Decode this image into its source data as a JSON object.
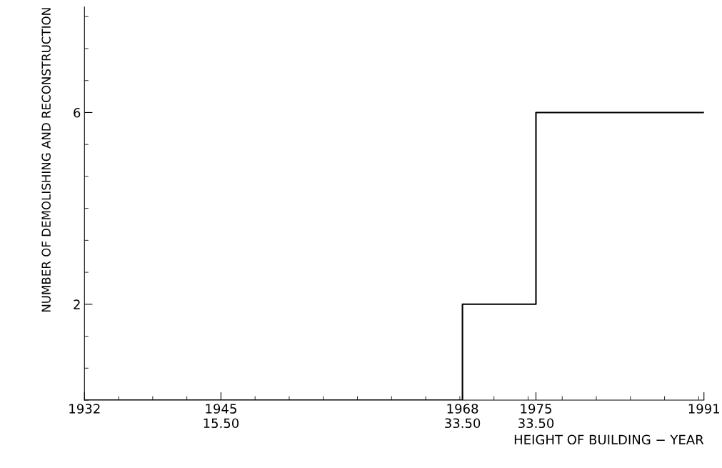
{
  "chart_data": {
    "type": "step",
    "xlabel": "HEIGHT OF BUILDING − YEAR",
    "ylabel": "NUMBER OF DEMOLISHING AND RECONSTRUCTION",
    "x": [
      1932,
      1968,
      1975,
      1991
    ],
    "series": [
      {
        "color": "#000000",
        "values": [
          0,
          2,
          6,
          6
        ]
      }
    ],
    "xlim": [
      1932,
      1991
    ],
    "xticks": [
      1932,
      {
        "value": 1945,
        "label": "1945\n15.50"
      },
      {
        "value": 1968,
        "label": "1968\n33.50"
      },
      {
        "value": 1975,
        "label": "1975\n33.50"
      },
      1991
    ],
    "ylim": [
      0,
      8.2
    ],
    "yticks": [
      2,
      6
    ],
    "grid": false
  }
}
